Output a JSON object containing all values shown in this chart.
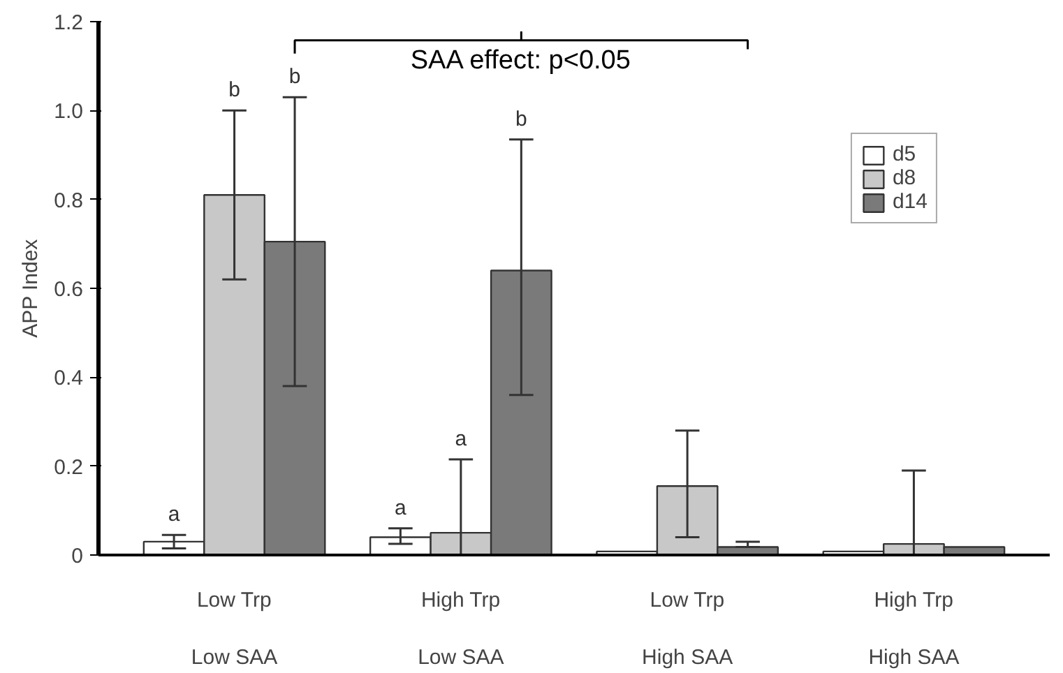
{
  "chart_data": {
    "type": "bar",
    "ylabel": "APP Index",
    "categories": [
      "Low Trp\n\nLow SAA",
      "High Trp\n\nLow SAA",
      "Low Trp\n\nHigh SAA",
      "High Trp\n\nHigh SAA"
    ],
    "series": [
      {
        "name": "d5",
        "color": "#ffffff",
        "values": [
          0.03,
          0.04,
          0.008,
          0.008
        ],
        "errors": [
          [
            0.015,
            0.045
          ],
          [
            0.025,
            0.06
          ],
          null,
          null
        ]
      },
      {
        "name": "d8",
        "color": "#c8c8c8",
        "values": [
          0.81,
          0.05,
          0.155,
          0.025
        ],
        "errors": [
          [
            0.62,
            1.0
          ],
          [
            0,
            0.215
          ],
          [
            0.04,
            0.28
          ],
          [
            0,
            0.19
          ]
        ]
      },
      {
        "name": "d14",
        "color": "#7a7a7a",
        "values": [
          0.705,
          0.64,
          0.018,
          0.018
        ],
        "errors": [
          [
            0.38,
            1.03
          ],
          [
            0.36,
            0.935
          ],
          [
            0.018,
            0.03
          ],
          null
        ]
      }
    ],
    "ylim": [
      0,
      1.2
    ],
    "yticks": [
      0,
      0.2,
      0.4,
      0.6,
      0.8,
      {
        "value": 1,
        "label": "1.0"
      },
      1.2
    ],
    "annotations": [
      "SAA effect: p<0.05",
      "a",
      "b",
      "b",
      "a",
      "a",
      "b"
    ],
    "legend": "top right",
    "grid": false
  }
}
